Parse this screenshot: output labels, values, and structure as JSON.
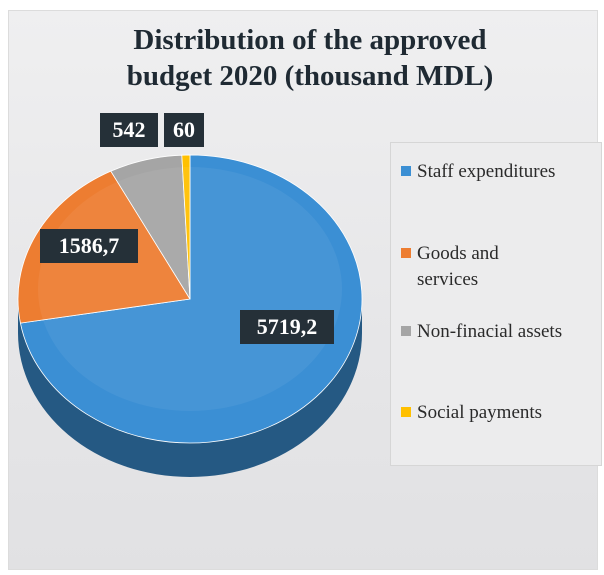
{
  "colors": {
    "staff": "#3b8fd4",
    "goods": "#ed7d31",
    "assets": "#a5a5a5",
    "social": "#ffc000",
    "label_bg": "#253038"
  },
  "chart_data": {
    "type": "pie",
    "title_lines": [
      "Distribution of the approved",
      "budget 2020 (thousand MDL)"
    ],
    "categories": [
      "Staff expenditures",
      "Goods and services",
      "Non-finacial assets",
      "Social payments"
    ],
    "values": [
      5719.2,
      1586.7,
      542,
      60
    ],
    "data_labels": [
      "5719,2",
      "1586,7",
      "542",
      "60"
    ],
    "legend_position": "right",
    "style": "3d"
  },
  "legend": {
    "items": [
      {
        "line1": "Staff expenditures",
        "line2": ""
      },
      {
        "line1": "Goods and",
        "line2": "services"
      },
      {
        "line1": "Non-finacial assets",
        "line2": ""
      },
      {
        "line1": "Social payments",
        "line2": ""
      }
    ]
  }
}
